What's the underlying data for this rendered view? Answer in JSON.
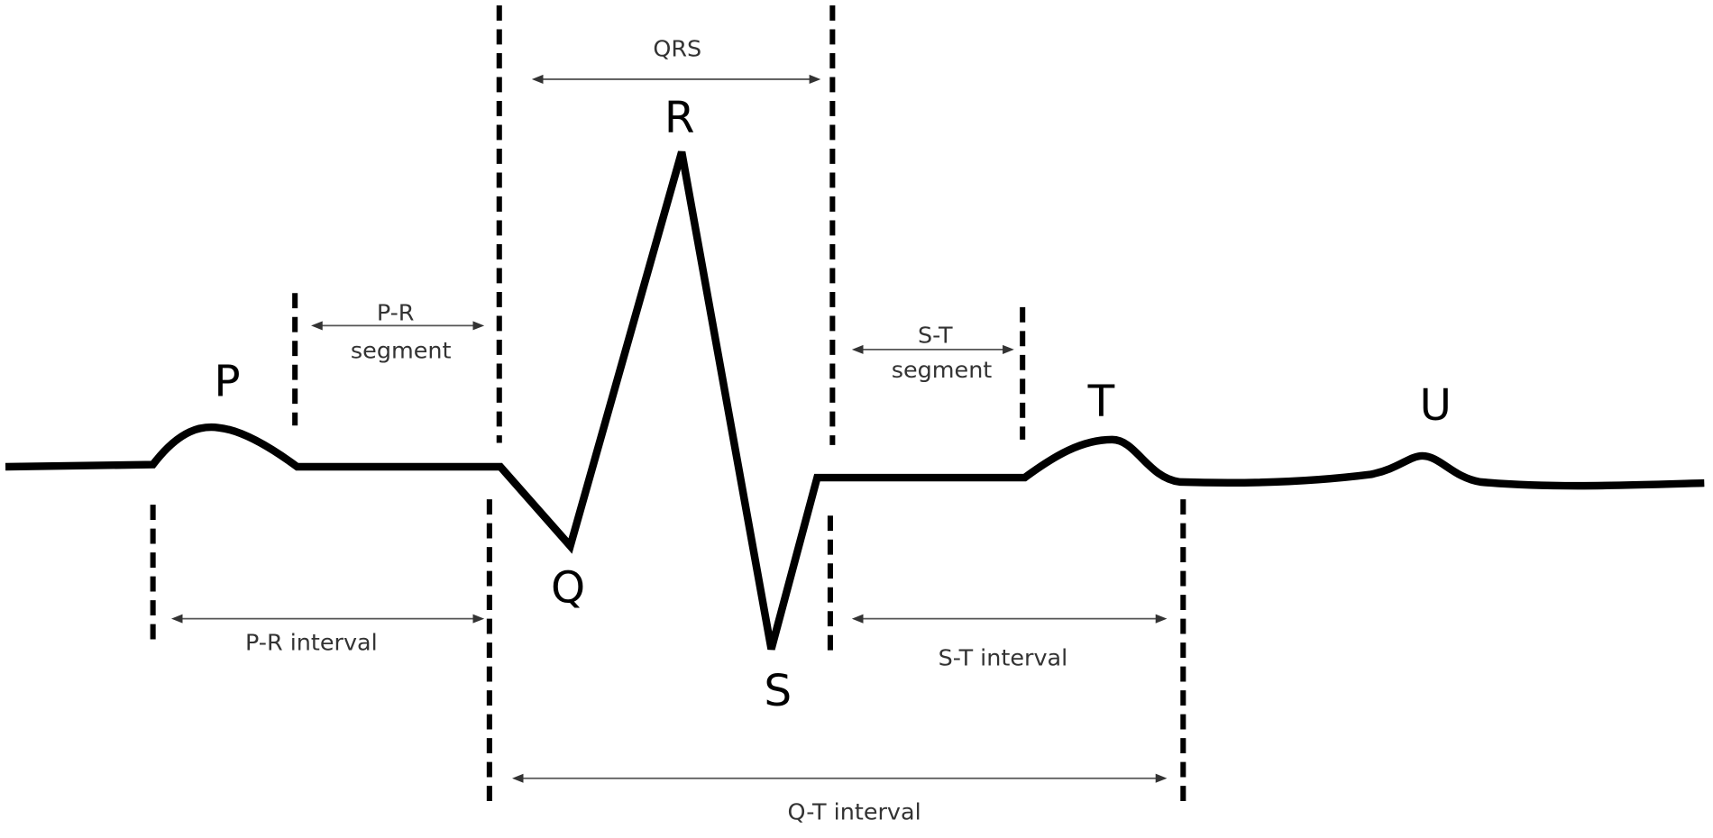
{
  "waves": {
    "p": "P",
    "q": "Q",
    "r": "R",
    "s": "S",
    "t": "T",
    "u": "U"
  },
  "labels": {
    "qrs": "QRS",
    "pr_segment_line1": "P-R",
    "pr_segment_line2": "segment",
    "st_segment_line1": "S-T",
    "st_segment_line2": "segment",
    "pr_interval": "P-R interval",
    "st_interval": "S-T interval",
    "qt_interval": "Q-T interval"
  }
}
